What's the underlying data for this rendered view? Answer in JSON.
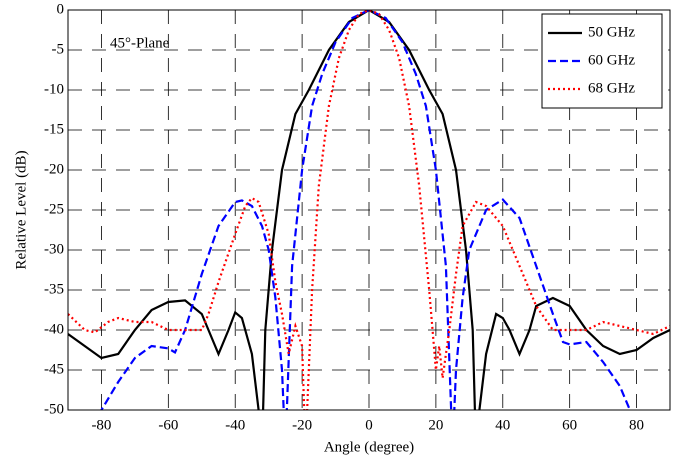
{
  "chart_data": {
    "type": "line",
    "xlabel": "Angle (degree)",
    "ylabel": "Relative Level (dB)",
    "annotation": "45°-Plane",
    "xlim": [
      -90,
      90
    ],
    "xticks": [
      -80,
      -60,
      -40,
      -20,
      0,
      20,
      40,
      60,
      80
    ],
    "ylim": [
      -50,
      0
    ],
    "yticks": [
      0,
      -5,
      -10,
      -15,
      -20,
      -25,
      -30,
      -35,
      -40,
      -45,
      -50
    ],
    "grid": true,
    "legend": "upper right",
    "series": [
      {
        "name": "50 GHz",
        "color": "#000000",
        "linestyle": "solid",
        "x": [
          -90,
          -85,
          -80,
          -75,
          -70,
          -65,
          -60,
          -55,
          -50,
          -47,
          -45,
          -42,
          -40,
          -38,
          -35,
          -33,
          -32,
          -31,
          -29,
          -26,
          -22,
          -18,
          -12,
          -6,
          0,
          6,
          12,
          18,
          22,
          26,
          29,
          31,
          32,
          33,
          35,
          38,
          40,
          42,
          45,
          48,
          50,
          55,
          60,
          65,
          70,
          75,
          80,
          85,
          90
        ],
        "values": [
          -40.5,
          -42,
          -43.5,
          -43,
          -40,
          -37.5,
          -36.5,
          -36.3,
          -38,
          -41,
          -43,
          -40,
          -37.8,
          -38.5,
          -43,
          -50,
          -55,
          -40,
          -30,
          -20,
          -13,
          -10,
          -5,
          -1.5,
          0,
          -1.5,
          -5,
          -10,
          -13,
          -20,
          -30,
          -40,
          -55,
          -50,
          -43,
          -38,
          -38.5,
          -40,
          -43,
          -40,
          -37,
          -36,
          -37,
          -40,
          -42,
          -43,
          -42.5,
          -41,
          -40
        ]
      },
      {
        "name": "60 GHz",
        "color": "#0000ff",
        "linestyle": "dashed",
        "x": [
          -82,
          -80,
          -75,
          -70,
          -65,
          -60,
          -58,
          -55,
          -50,
          -45,
          -40,
          -38,
          -35,
          -32,
          -30,
          -28,
          -26,
          -25,
          -23,
          -20,
          -17,
          -14,
          -10,
          -5,
          0,
          5,
          10,
          14,
          17,
          20,
          23,
          25,
          26,
          28,
          30,
          35,
          40,
          45,
          50,
          55,
          58,
          60,
          65,
          70,
          75,
          78,
          80
        ],
        "values": [
          -52,
          -50,
          -46.5,
          -43.5,
          -42,
          -42.3,
          -42.8,
          -40,
          -33,
          -27,
          -24,
          -23.8,
          -24.5,
          -27,
          -30,
          -36,
          -45,
          -55,
          -32,
          -20,
          -12,
          -8,
          -4,
          -1,
          0,
          -1,
          -4,
          -8,
          -12,
          -20,
          -32,
          -55,
          -45,
          -36,
          -30,
          -25,
          -23.7,
          -26,
          -32,
          -38,
          -41.5,
          -41.8,
          -41.5,
          -44,
          -47,
          -50,
          -53
        ]
      },
      {
        "name": "68 GHz",
        "color": "#ff0000",
        "linestyle": "dotted",
        "x": [
          -90,
          -85,
          -82,
          -78,
          -75,
          -70,
          -65,
          -60,
          -55,
          -50,
          -48,
          -45,
          -40,
          -37,
          -35,
          -33,
          -30,
          -28,
          -26,
          -24,
          -22,
          -20,
          -19,
          -17,
          -15,
          -12,
          -9,
          -6,
          -3,
          0,
          3,
          6,
          9,
          12,
          15,
          18,
          20,
          21,
          22,
          24,
          26,
          28,
          32,
          35,
          40,
          45,
          50,
          55,
          60,
          65,
          70,
          75,
          80,
          85,
          90
        ],
        "values": [
          -38,
          -40,
          -40.3,
          -39,
          -38.5,
          -39,
          -39,
          -40,
          -40,
          -40,
          -38,
          -34,
          -28,
          -24.5,
          -23.5,
          -24,
          -28,
          -34,
          -38,
          -43,
          -39.5,
          -42,
          -55,
          -35,
          -22,
          -12,
          -6,
          -2.5,
          -0.5,
          0,
          -0.5,
          -2.5,
          -6,
          -12,
          -22,
          -35,
          -45,
          -42,
          -46,
          -40,
          -33,
          -27,
          -24,
          -24.5,
          -27,
          -32,
          -37,
          -40,
          -40,
          -40,
          -39,
          -39.5,
          -40,
          -40.5,
          -39.5
        ]
      }
    ]
  }
}
